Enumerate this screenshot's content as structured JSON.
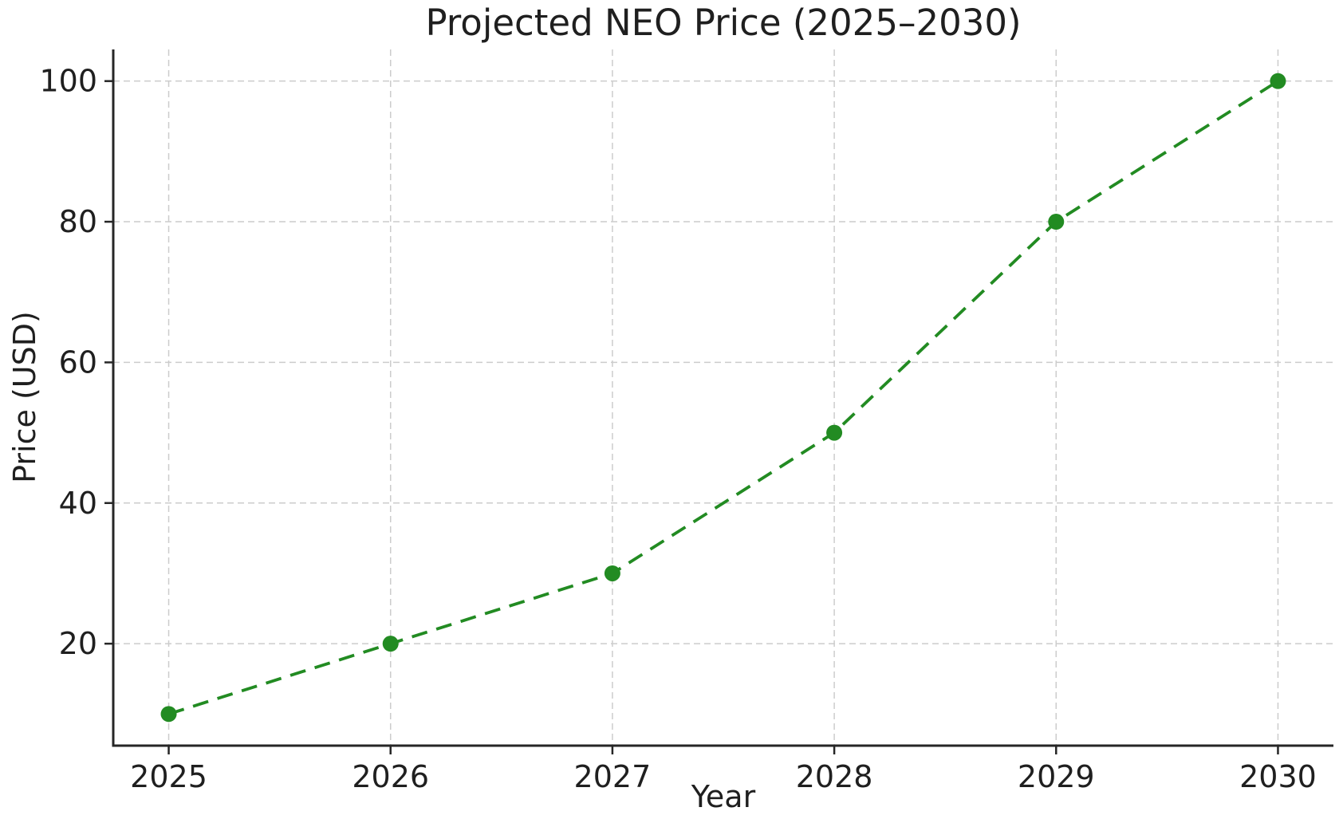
{
  "chart_data": {
    "type": "line",
    "title": "Projected NEO Price (2025–2030)",
    "xlabel": "Year",
    "ylabel": "Price (USD)",
    "x": [
      2025,
      2026,
      2027,
      2028,
      2029,
      2030
    ],
    "values": [
      10,
      20,
      30,
      50,
      80,
      100
    ],
    "xticks": [
      2025,
      2026,
      2027,
      2028,
      2029,
      2030
    ],
    "yticks": [
      20,
      40,
      60,
      80,
      100
    ],
    "xlim": [
      2024.75,
      2030.25
    ],
    "ylim": [
      5.5,
      104.5
    ],
    "grid": true,
    "grid_style": "dashed",
    "legend": "none",
    "line_style": "dashed",
    "marker": "circle",
    "colors": {
      "line": "#228B22",
      "grid": "#cccccc",
      "spine": "#262626",
      "text": "#1f1f1f",
      "background": "#ffffff"
    }
  }
}
